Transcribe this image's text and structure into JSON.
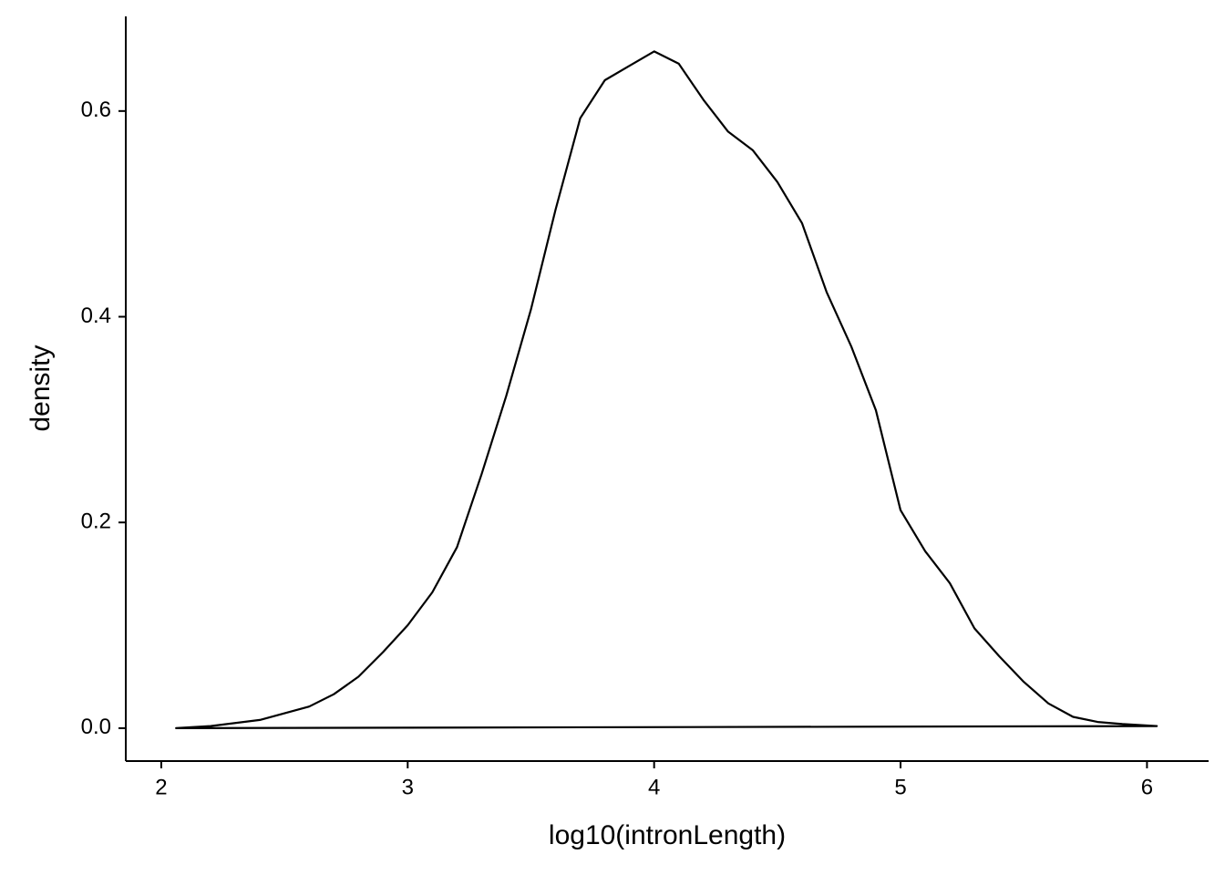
{
  "chart_data": {
    "type": "density",
    "x_label": "log10(intronLength)",
    "y_label": "density",
    "x": [
      2.06,
      2.2,
      2.4,
      2.6,
      2.7,
      2.8,
      2.9,
      3.0,
      3.1,
      3.2,
      3.3,
      3.4,
      3.5,
      3.6,
      3.7,
      3.8,
      3.9,
      4.0,
      4.1,
      4.2,
      4.3,
      4.4,
      4.5,
      4.6,
      4.7,
      4.8,
      4.9,
      5.0,
      5.1,
      5.2,
      5.3,
      5.4,
      5.5,
      5.6,
      5.7,
      5.8,
      5.9,
      6.04
    ],
    "values": [
      0.0,
      0.002,
      0.008,
      0.021,
      0.033,
      0.05,
      0.074,
      0.1,
      0.132,
      0.176,
      0.247,
      0.323,
      0.407,
      0.504,
      0.593,
      0.63,
      0.644,
      0.658,
      0.646,
      0.611,
      0.58,
      0.562,
      0.531,
      0.491,
      0.424,
      0.371,
      0.309,
      0.212,
      0.172,
      0.141,
      0.097,
      0.07,
      0.045,
      0.024,
      0.011,
      0.006,
      0.004,
      0.002
    ],
    "color": "#000000",
    "xlim": [
      1.856,
      6.25
    ],
    "ylim": [
      -0.032,
      0.692
    ],
    "xticks": [
      2,
      3,
      4,
      5,
      6
    ],
    "yticks": [
      {
        "value": 0,
        "label": "0.0"
      },
      0.2,
      0.4,
      0.6
    ],
    "grid": false
  }
}
